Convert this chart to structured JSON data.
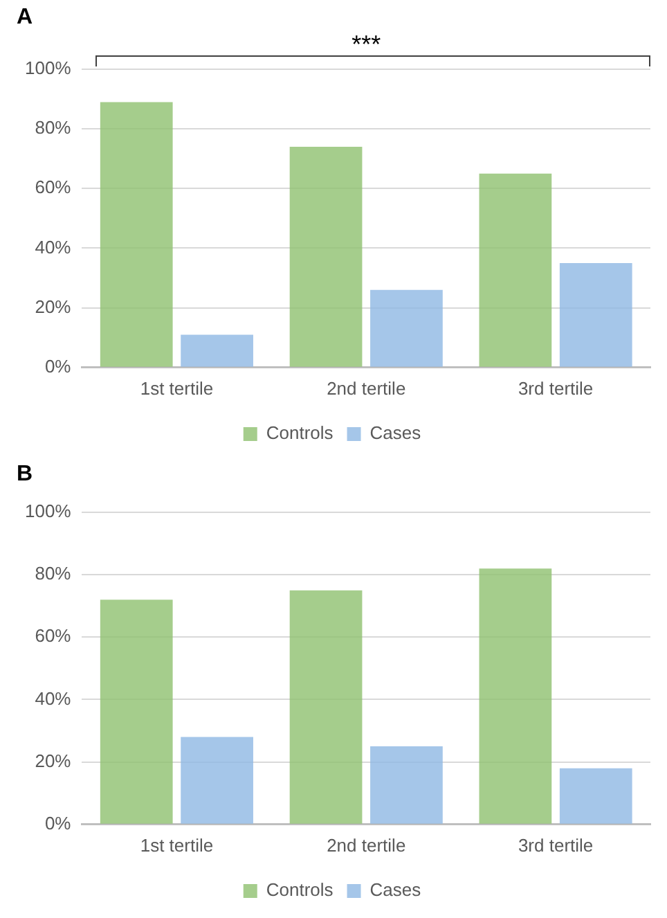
{
  "chart_data": [
    {
      "type": "bar",
      "title": "A",
      "annotations": [
        "***"
      ],
      "categories": [
        "1st tertile",
        "2nd tertile",
        "3rd tertile"
      ],
      "series": [
        {
          "name": "Controls",
          "color": "#8fc16f",
          "values": [
            89,
            74,
            65
          ]
        },
        {
          "name": "Cases",
          "color": "#8fb8e4",
          "values": [
            11,
            26,
            35
          ]
        }
      ],
      "ylim": [
        0,
        100
      ],
      "yticks": [
        {
          "value": 0,
          "label": "0%"
        },
        {
          "value": 20,
          "label": "20%"
        },
        {
          "value": 40,
          "label": "40%"
        },
        {
          "value": 60,
          "label": "60%"
        },
        {
          "value": 80,
          "label": "80%"
        },
        {
          "value": 100,
          "label": "100%"
        }
      ],
      "grid": "y",
      "legend": "bottom"
    },
    {
      "type": "bar",
      "title": "B",
      "categories": [
        "1st tertile",
        "2nd tertile",
        "3rd tertile"
      ],
      "series": [
        {
          "name": "Controls",
          "color": "#8fc16f",
          "values": [
            72,
            75,
            82
          ]
        },
        {
          "name": "Cases",
          "color": "#8fb8e4",
          "values": [
            28,
            25,
            18
          ]
        }
      ],
      "ylim": [
        0,
        100
      ],
      "yticks": [
        {
          "value": 0,
          "label": "0%"
        },
        {
          "value": 20,
          "label": "20%"
        },
        {
          "value": 40,
          "label": "40%"
        },
        {
          "value": 60,
          "label": "60%"
        },
        {
          "value": 80,
          "label": "80%"
        },
        {
          "value": 100,
          "label": "100%"
        }
      ],
      "grid": "y",
      "legend": "bottom"
    }
  ]
}
